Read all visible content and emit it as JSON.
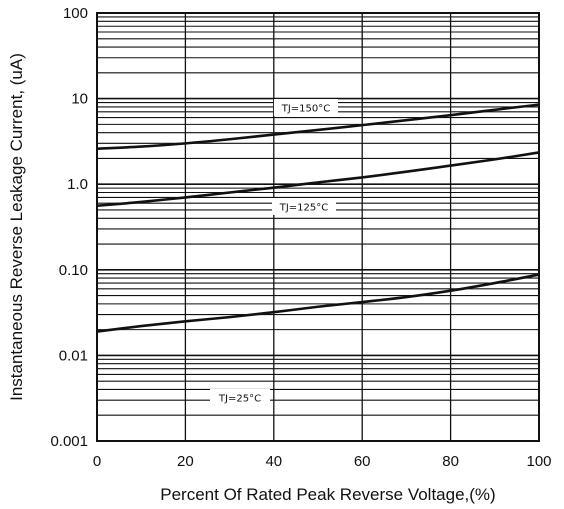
{
  "chart_data": {
    "type": "line",
    "title": "",
    "xlabel": "Percent  Of Rated Peak Reverse Voltage,(%)",
    "ylabel": "Instantaneous Reverse Leakage Current, (uA)",
    "xlim": [
      0,
      100
    ],
    "ylim": [
      0.001,
      100
    ],
    "yscale": "log",
    "grid": true,
    "x_ticks": [
      0,
      20,
      40,
      60,
      80,
      100
    ],
    "x_tick_labels": [
      "0",
      "20",
      "40",
      "60",
      "80",
      "100"
    ],
    "y_ticks": [
      0.001,
      0.01,
      0.1,
      1,
      10,
      100
    ],
    "y_tick_labels": [
      "0.001",
      "0.01",
      "0.10",
      "1.0",
      "10",
      "100"
    ],
    "series": [
      {
        "name": "",
        "label": "TJ=150°C",
        "x": [
          0,
          10,
          20,
          30,
          40,
          50,
          60,
          70,
          80,
          90,
          100
        ],
        "y": [
          2.6,
          2.75,
          3.0,
          3.35,
          3.8,
          4.3,
          4.9,
          5.6,
          6.4,
          7.4,
          8.5
        ]
      },
      {
        "name": "",
        "label": "TJ=125°C",
        "x": [
          0,
          10,
          20,
          30,
          40,
          50,
          60,
          70,
          80,
          90,
          100
        ],
        "y": [
          0.56,
          0.62,
          0.7,
          0.8,
          0.91,
          1.05,
          1.2,
          1.4,
          1.65,
          1.95,
          2.35
        ]
      },
      {
        "name": "",
        "label": "TJ=25°C",
        "x": [
          0,
          10,
          20,
          30,
          40,
          50,
          60,
          70,
          80,
          90,
          100
        ],
        "y": [
          0.019,
          0.022,
          0.025,
          0.028,
          0.032,
          0.037,
          0.042,
          0.048,
          0.057,
          0.07,
          0.088
        ]
      }
    ]
  }
}
